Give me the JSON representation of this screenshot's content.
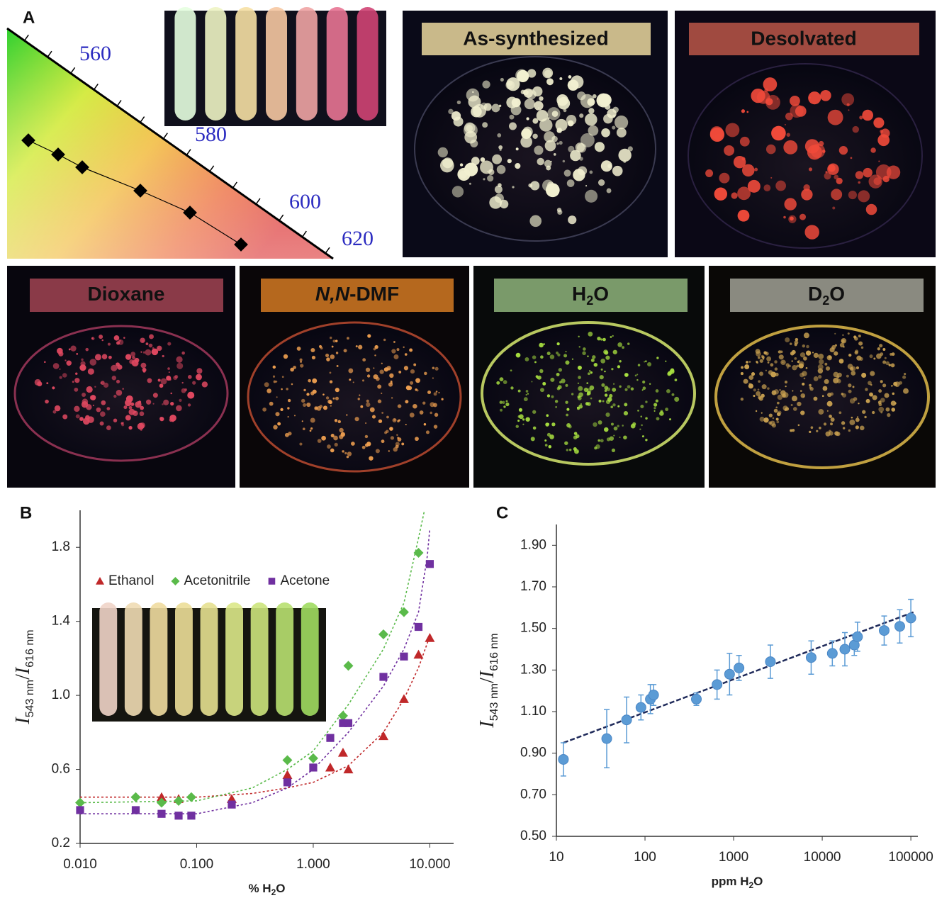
{
  "panel_a": {
    "label": "A",
    "wavelengths": [
      "560",
      "580",
      "600",
      "620"
    ]
  },
  "photos": [
    {
      "text": "As-synthesized"
    },
    {
      "text": "Desolvated"
    },
    {
      "text": "Dioxane"
    },
    {
      "italic": "N,N",
      "text": "-DMF"
    },
    {
      "text": "H",
      "sub": "2",
      "tail": "O"
    },
    {
      "text": "D",
      "sub": "2",
      "tail": "O"
    }
  ],
  "chart_data": [
    {
      "type": "scatter",
      "label": "B",
      "xlabel": {
        "text": "% H",
        "sub": "2",
        "tail": "O"
      },
      "ylabel": {
        "main1": "I",
        "sub1": "543 nm",
        "sep": "/",
        "main2": "I",
        "sub2": "616 nm"
      },
      "xscale": "log",
      "xlim": [
        0.01,
        16
      ],
      "ylim": [
        0.2,
        2.0
      ],
      "xticks": [
        {
          "value": 0.01,
          "label": "0.010"
        },
        {
          "value": 0.1,
          "label": "0.100"
        },
        {
          "value": 1,
          "label": "1.000"
        },
        {
          "value": 10,
          "label": "10.000"
        }
      ],
      "yticks": [
        0.2,
        0.6,
        {
          "value": 1,
          "label": "1.0"
        },
        1.4,
        1.8
      ],
      "grid": false,
      "legend": "top",
      "series": [
        {
          "name": "Ethanol",
          "color": "#c0282a",
          "marker": "triangle",
          "x": [
            0.05,
            0.07,
            0.2,
            0.6,
            1.4,
            1.8,
            2,
            4,
            6,
            8,
            10
          ],
          "values": [
            0.45,
            0.44,
            0.44,
            0.57,
            0.61,
            0.69,
            0.6,
            0.78,
            0.98,
            1.22,
            1.31
          ],
          "fit_x": [
            0.01,
            0.1,
            0.3,
            0.6,
            1,
            2,
            4,
            6,
            8,
            10
          ],
          "fit_values": [
            0.45,
            0.45,
            0.47,
            0.5,
            0.53,
            0.62,
            0.8,
            0.98,
            1.15,
            1.32
          ]
        },
        {
          "name": "Acetonitrile",
          "color": "#5aba4a",
          "marker": "diamond",
          "x": [
            0.01,
            0.03,
            0.05,
            0.07,
            0.09,
            0.6,
            1,
            1.8,
            2,
            4,
            6,
            8
          ],
          "values": [
            0.42,
            0.45,
            0.42,
            0.43,
            0.45,
            0.65,
            0.66,
            0.89,
            1.16,
            1.33,
            1.45,
            1.77
          ],
          "fit_x": [
            0.01,
            0.1,
            0.3,
            0.6,
            1,
            2,
            4,
            6,
            8,
            9
          ],
          "fit_values": [
            0.42,
            0.43,
            0.5,
            0.6,
            0.7,
            0.95,
            1.25,
            1.5,
            1.85,
            2.0
          ]
        },
        {
          "name": "Acetone",
          "color": "#7030a0",
          "marker": "square",
          "x": [
            0.01,
            0.03,
            0.05,
            0.07,
            0.09,
            0.2,
            0.6,
            1,
            1.4,
            1.8,
            2,
            4,
            6,
            8,
            10
          ],
          "values": [
            0.38,
            0.38,
            0.36,
            0.35,
            0.35,
            0.41,
            0.53,
            0.61,
            0.77,
            0.85,
            0.85,
            1.1,
            1.21,
            1.37,
            1.71
          ],
          "fit_x": [
            0.01,
            0.1,
            0.3,
            0.6,
            1,
            2,
            4,
            6,
            8,
            9.5,
            10
          ],
          "fit_values": [
            0.36,
            0.36,
            0.42,
            0.5,
            0.6,
            0.8,
            1.05,
            1.25,
            1.45,
            1.75,
            1.9
          ]
        }
      ]
    },
    {
      "type": "scatter",
      "label": "C",
      "xlabel": {
        "text": "ppm H",
        "sub": "2",
        "tail": "O"
      },
      "ylabel": {
        "main1": "I",
        "sub1": "543 nm",
        "sep": "/",
        "main2": "I",
        "sub2": "616 nm"
      },
      "xscale": "log",
      "xlim": [
        10,
        120000
      ],
      "ylim": [
        0.5,
        2.0
      ],
      "xticks": [
        10,
        100,
        1000,
        10000,
        100000
      ],
      "yticks": [
        {
          "value": 0.5,
          "label": "0.50"
        },
        {
          "value": 0.7,
          "label": "0.70"
        },
        {
          "value": 0.9,
          "label": "0.90"
        },
        {
          "value": 1.1,
          "label": "1.10"
        },
        {
          "value": 1.3,
          "label": "1.30"
        },
        {
          "value": 1.5,
          "label": "1.50"
        },
        {
          "value": 1.7,
          "label": "1.70"
        },
        {
          "value": 1.9,
          "label": "1.90"
        }
      ],
      "grid": false,
      "series": [
        {
          "color": "#5b9bd5",
          "marker": "circle",
          "x": [
            12,
            37,
            62,
            90,
            115,
            125,
            380,
            650,
            900,
            1150,
            2600,
            7500,
            13000,
            18000,
            23000,
            25000,
            50000,
            75000,
            100000
          ],
          "values": [
            0.87,
            0.97,
            1.06,
            1.12,
            1.16,
            1.18,
            1.16,
            1.23,
            1.28,
            1.31,
            1.34,
            1.36,
            1.38,
            1.4,
            1.42,
            1.46,
            1.49,
            1.51,
            1.55
          ],
          "errors": [
            0.08,
            0.14,
            0.11,
            0.06,
            0.07,
            0.05,
            0.03,
            0.07,
            0.1,
            0.06,
            0.08,
            0.08,
            0.06,
            0.08,
            0.05,
            0.07,
            0.07,
            0.08,
            0.09
          ]
        }
      ],
      "trend": {
        "x": [
          12,
          110000
        ],
        "values": [
          0.95,
          1.58
        ],
        "color": "#1f2a5a"
      }
    }
  ]
}
